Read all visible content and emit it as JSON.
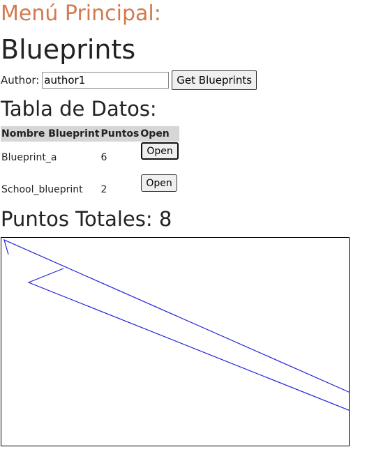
{
  "menu": {
    "title": "Menú Principal:"
  },
  "header": {
    "title": "Blueprints"
  },
  "author": {
    "label": "Author:",
    "value": "author1",
    "button_label": "Get Blueprints"
  },
  "table": {
    "title": "Tabla de Datos:",
    "headers": [
      "Nombre Blueprint",
      "Puntos",
      "Open"
    ],
    "rows": [
      {
        "name": "Blueprint_a",
        "points": "6",
        "button": "Open"
      },
      {
        "name": "School_blueprint",
        "points": "2",
        "button": "Open"
      }
    ]
  },
  "totals": {
    "label": "Puntos Totales: 8"
  },
  "canvas": {
    "stroke_color": "#2222dd"
  }
}
